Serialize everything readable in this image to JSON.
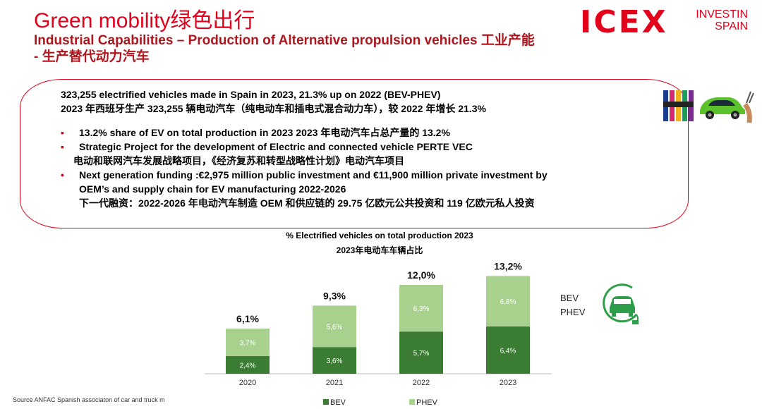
{
  "header": {
    "title": "Green mobility绿色出行",
    "subtitle": "Industrial Capabilities – Production of  Alternative propulsion vehicles 工业产能 - 生产替代动力汽车"
  },
  "logos": {
    "icex": "ICEX",
    "invest_line1": "INVESTIN",
    "invest_line2": "SPAIN"
  },
  "summary": {
    "line_en": "323,255 electrified vehicles made in Spain in 2023, 21.3% up on 2022 (BEV-PHEV)",
    "line_cn": "2023 年西班牙生产 323,255 辆电动汽车（纯电动车和插电式混合动力车），较 2022 年增长 21.3%"
  },
  "bullets": [
    {
      "marker": "▪",
      "text": "13.2% share of EV on total production in 2023 2023 年电动汽车占总产量的 13.2%"
    },
    {
      "marker": "▪",
      "text": "Strategic Project for the development of Electric and connected vehicle PERTE VEC",
      "text_cn": "电动和联网汽车发展战略项目，《经济复苏和转型战略性计划》电动汽车项目"
    },
    {
      "marker": "•",
      "text": "Next generation funding :€2,975 million  public investment  and €11,900 million private investment by",
      "text_cont": "OEM’s and supply chain  for EV manufacturing 2022-2026",
      "text_cn": "下一代融资：2022-2026 年电动汽车制造 OEM 和供应链的 29.75 亿欧元公共投资和 119 亿欧元私人投资"
    }
  ],
  "chart_data": {
    "type": "bar",
    "stacked": true,
    "title": "% Electrified vehicles on total production 2023",
    "subtitle": "2023年电动车车辆占比",
    "categories": [
      "2020",
      "2021",
      "2022",
      "2023"
    ],
    "series": [
      {
        "name": "BEV",
        "values": [
          2.4,
          3.6,
          5.7,
          6.4
        ],
        "labels": [
          "2,4%",
          "3,6%",
          "5,7%",
          "6,4%"
        ],
        "color": "#3a7d32"
      },
      {
        "name": "PHEV",
        "values": [
          3.7,
          5.6,
          6.3,
          6.8
        ],
        "labels": [
          "3,7%",
          "5,6%",
          "6,3%",
          "6,8%"
        ],
        "color": "#a9d18e"
      }
    ],
    "totals": [
      6.1,
      9.3,
      12.0,
      13.2
    ],
    "total_labels": [
      "6,1%",
      "9,3%",
      "12,0%",
      "13,2%"
    ],
    "legend": "bottom",
    "grid": false
  },
  "side_labels": {
    "bev": "BEV",
    "phev": "PHEV"
  },
  "source": "Source ANFAC Spanish associaton of car and truck m",
  "colors": {
    "accent": "#e3001b",
    "bev": "#3a7d32",
    "phev": "#a9d18e"
  },
  "icons": {
    "charging_car": "charging-car-icon",
    "ev_badge": "ev-charging-badge-icon"
  }
}
